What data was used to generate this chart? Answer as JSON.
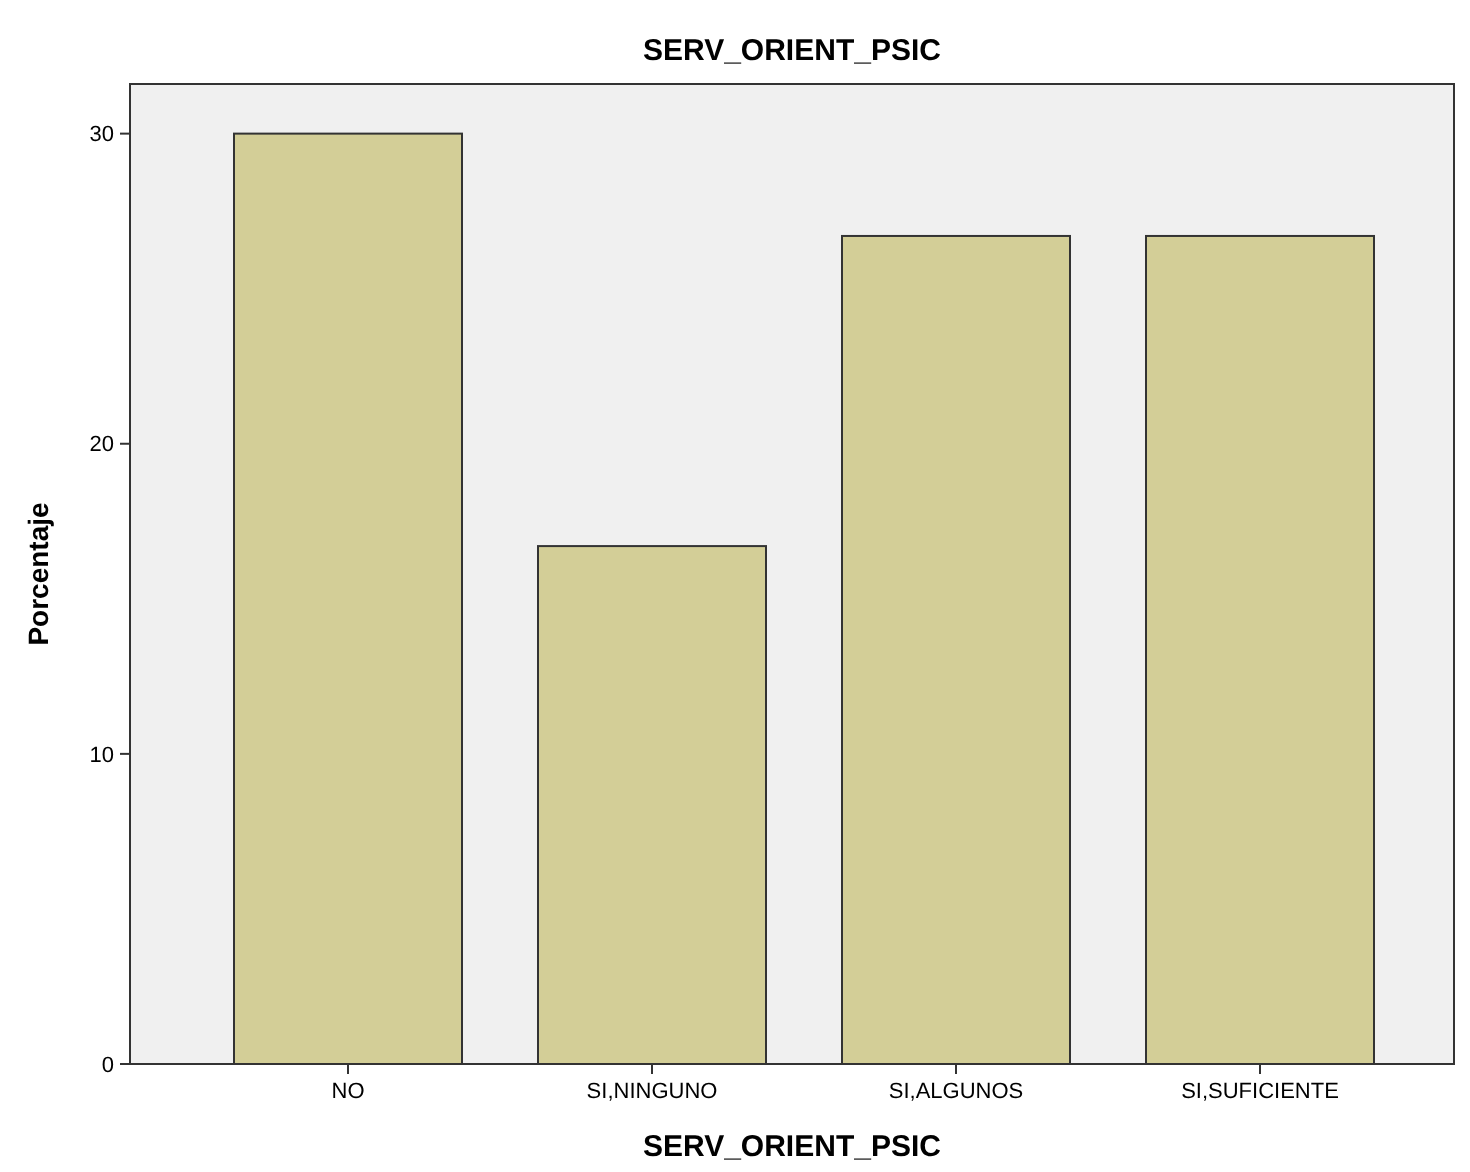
{
  "chart_data": {
    "type": "bar",
    "title": "SERV_ORIENT_PSIC",
    "xlabel": "SERV_ORIENT_PSIC",
    "ylabel": "Porcentaje",
    "categories": [
      "NO",
      "SI,NINGUNO",
      "SI,ALGUNOS",
      "SI,SUFICIENTE"
    ],
    "values": [
      30,
      16.7,
      26.7,
      26.7
    ],
    "color": "#d3ce97",
    "ylim": [
      0,
      31.6
    ],
    "yticks": [
      0,
      10,
      20,
      30
    ],
    "grid": false
  }
}
